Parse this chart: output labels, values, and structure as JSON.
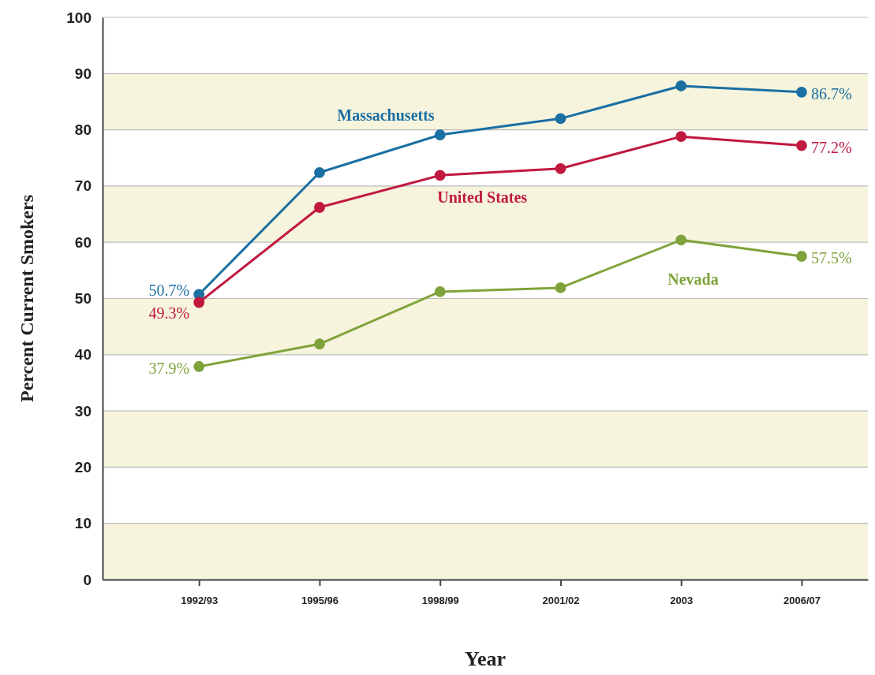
{
  "chart_data": {
    "type": "line",
    "xlabel": "Year",
    "ylabel": "Percent Current Smokers",
    "categories": [
      "1992/93",
      "1995/96",
      "1998/99",
      "2001/02",
      "2003",
      "2006/07"
    ],
    "ylim": [
      0,
      100
    ],
    "yticks": [
      0,
      10,
      20,
      30,
      40,
      50,
      60,
      70,
      80,
      90,
      100
    ],
    "grid": "y",
    "marker": "circle",
    "line_style": "solid",
    "bands": [
      {
        "axis": "y",
        "from": 0,
        "to": 10,
        "color": "#f6f4dd"
      },
      {
        "axis": "y",
        "from": 20,
        "to": 30,
        "color": "#f6f4dd"
      },
      {
        "axis": "y",
        "from": 40,
        "to": 50,
        "color": "#f6f4dd"
      },
      {
        "axis": "y",
        "from": 60,
        "to": 70,
        "color": "#f6f4dd"
      },
      {
        "axis": "y",
        "from": 80,
        "to": 90,
        "color": "#f6f4dd"
      }
    ],
    "series": [
      {
        "name": "Massachusetts",
        "color": "#1a6fa3",
        "values": [
          50.7,
          72.4,
          79.1,
          82.0,
          87.8,
          86.7
        ],
        "value_labels": [
          "50.7%",
          null,
          null,
          null,
          null,
          "86.7%"
        ]
      },
      {
        "name": "United States",
        "color": "#c0183f",
        "values": [
          49.3,
          66.2,
          71.9,
          73.1,
          78.8,
          77.2
        ],
        "value_labels": [
          "49.3%",
          null,
          null,
          null,
          null,
          "77.2%"
        ]
      },
      {
        "name": "Nevada",
        "color": "#7fa33a",
        "values": [
          37.9,
          41.9,
          51.2,
          51.9,
          60.4,
          57.5
        ],
        "value_labels": [
          "37.9%",
          null,
          null,
          null,
          null,
          "57.5%"
        ]
      }
    ]
  }
}
